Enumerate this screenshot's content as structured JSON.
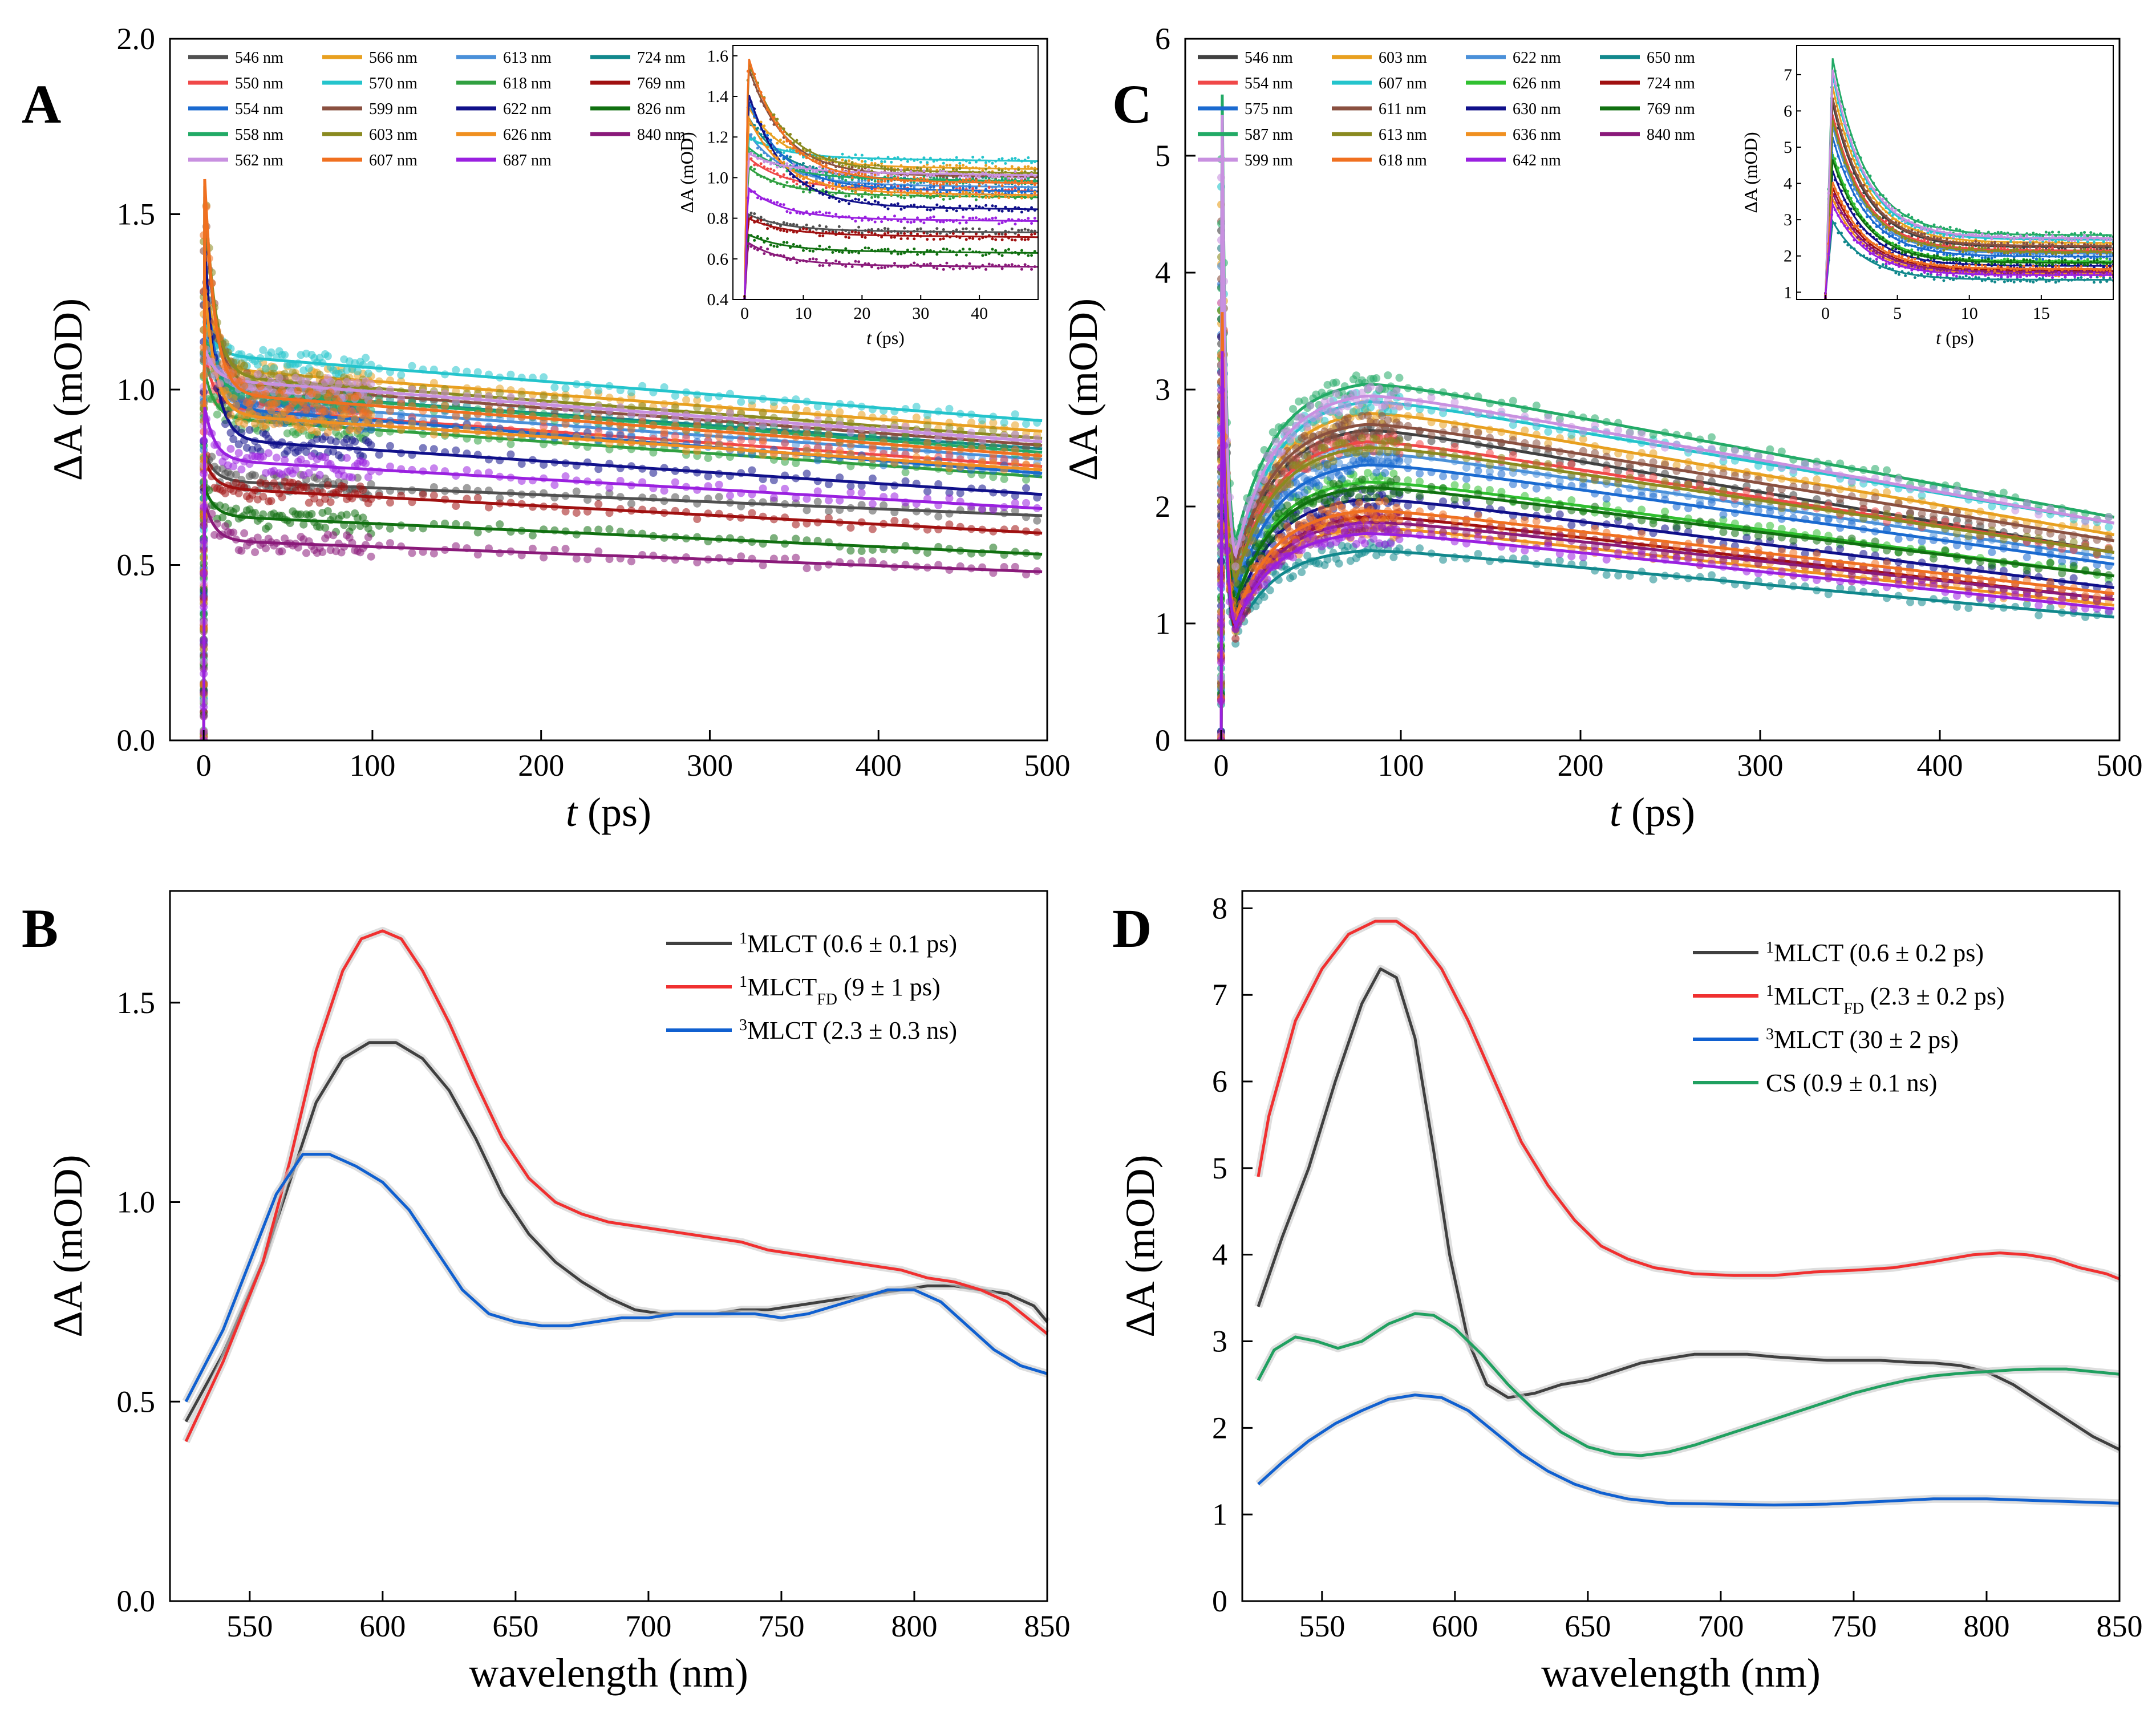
{
  "chart_data": [
    {
      "panel": "A",
      "type": "scatter",
      "xlabel_italic": "t",
      "xlabel_unit": "(ps)",
      "ylabel": "ΔA (mOD)",
      "xlim": [
        -20,
        500
      ],
      "ylim": [
        0,
        2.0
      ],
      "xticks": [
        "0",
        "100",
        "200",
        "300",
        "400",
        "500"
      ],
      "yticks": [
        "0.0",
        "0.5",
        "1.0",
        "1.5",
        "2.0"
      ],
      "legend": [
        "546 nm",
        "566 nm",
        "613 nm",
        "724 nm",
        "550 nm",
        "570 nm",
        "618 nm",
        "769 nm",
        "554 nm",
        "599 nm",
        "622 nm",
        "826 nm",
        "558 nm",
        "603 nm",
        "626 nm",
        "840 nm",
        "562 nm",
        "607 nm",
        "687 nm"
      ],
      "legend_colors": [
        "#505050",
        "#e8a020",
        "#4a90d9",
        "#11888c",
        "#f04848",
        "#24c4cc",
        "#30a040",
        "#a01010",
        "#1a6ad0",
        "#8a5040",
        "#10108a",
        "#107010",
        "#22aa66",
        "#8a8a20",
        "#f09020",
        "#8a1a7a",
        "#c890e0",
        "#f07020",
        "#9a20e0"
      ],
      "series": [
        {
          "name": "546 nm",
          "color": "#505050",
          "start": 0.82,
          "plateau": 0.74,
          "end": 0.64
        },
        {
          "name": "566 nm",
          "color": "#e8a020",
          "start": 1.35,
          "plateau": 1.06,
          "end": 0.88
        },
        {
          "name": "613 nm",
          "color": "#4a90d9",
          "start": 1.22,
          "plateau": 0.97,
          "end": 0.8
        },
        {
          "name": "724 nm",
          "color": "#11888c",
          "start": 1.3,
          "plateau": 1.0,
          "end": 0.83
        },
        {
          "name": "550 nm",
          "color": "#f04848",
          "start": 1.1,
          "plateau": 0.95,
          "end": 0.78
        },
        {
          "name": "570 nm",
          "color": "#24c4cc",
          "start": 1.2,
          "plateau": 1.1,
          "end": 0.91
        },
        {
          "name": "618 nm",
          "color": "#30a040",
          "start": 1.05,
          "plateau": 0.92,
          "end": 0.75
        },
        {
          "name": "769 nm",
          "color": "#a01010",
          "start": 0.8,
          "plateau": 0.72,
          "end": 0.59
        },
        {
          "name": "554 nm",
          "color": "#1a6ad0",
          "start": 1.38,
          "plateau": 0.95,
          "end": 0.76
        },
        {
          "name": "599 nm",
          "color": "#8a5040",
          "start": 1.55,
          "plateau": 1.02,
          "end": 0.84
        },
        {
          "name": "622 nm",
          "color": "#10108a",
          "start": 1.42,
          "plateau": 0.86,
          "end": 0.7
        },
        {
          "name": "826 nm",
          "color": "#107010",
          "start": 0.72,
          "plateau": 0.64,
          "end": 0.53
        },
        {
          "name": "558 nm",
          "color": "#22aa66",
          "start": 1.15,
          "plateau": 1.0,
          "end": 0.82
        },
        {
          "name": "603 nm",
          "color": "#8a8a20",
          "start": 1.58,
          "plateau": 1.04,
          "end": 0.86
        },
        {
          "name": "626 nm",
          "color": "#f09020",
          "start": 1.3,
          "plateau": 0.93,
          "end": 0.77
        },
        {
          "name": "840 nm",
          "color": "#8a1a7a",
          "start": 0.68,
          "plateau": 0.57,
          "end": 0.48
        },
        {
          "name": "562 nm",
          "color": "#c890e0",
          "start": 1.12,
          "plateau": 1.03,
          "end": 0.85
        },
        {
          "name": "607 nm",
          "color": "#f07020",
          "start": 1.6,
          "plateau": 0.99,
          "end": 0.81
        },
        {
          "name": "687 nm",
          "color": "#9a20e0",
          "start": 0.95,
          "plateau": 0.8,
          "end": 0.66
        }
      ],
      "inset": {
        "xlabel_italic": "t",
        "xlabel_unit": "(ps)",
        "ylabel": "ΔA (mOD)",
        "xlim": [
          -2,
          50
        ],
        "ylim": [
          0.4,
          1.65
        ],
        "xticks": [
          "0",
          "10",
          "20",
          "30",
          "40"
        ],
        "yticks": [
          "0.4",
          "0.6",
          "0.8",
          "1.0",
          "1.2",
          "1.4",
          "1.6"
        ]
      }
    },
    {
      "panel": "B",
      "type": "line",
      "xlabel": "wavelength (nm)",
      "ylabel": "ΔA (mOD)",
      "xlim": [
        520,
        850
      ],
      "ylim": [
        0,
        1.78
      ],
      "xticks": [
        "550",
        "600",
        "650",
        "700",
        "750",
        "800",
        "850"
      ],
      "yticks": [
        "0.0",
        "0.5",
        "1.0",
        "1.5"
      ],
      "series": [
        {
          "label_sup": "1",
          "label": "MLCT",
          "label_sub": "",
          "label_rest": "(0.6 ± 0.1 ps)",
          "color": "#404040",
          "x": [
            526,
            540,
            555,
            565,
            575,
            585,
            595,
            605,
            615,
            625,
            635,
            645,
            655,
            665,
            675,
            685,
            695,
            705,
            715,
            725,
            735,
            745,
            755,
            765,
            775,
            785,
            795,
            805,
            815,
            825,
            835,
            845,
            850
          ],
          "y": [
            0.45,
            0.62,
            0.85,
            1.05,
            1.25,
            1.36,
            1.4,
            1.4,
            1.36,
            1.28,
            1.16,
            1.02,
            0.92,
            0.85,
            0.8,
            0.76,
            0.73,
            0.72,
            0.72,
            0.72,
            0.73,
            0.73,
            0.74,
            0.75,
            0.76,
            0.77,
            0.78,
            0.79,
            0.79,
            0.78,
            0.77,
            0.74,
            0.7
          ]
        },
        {
          "label_sup": "1",
          "label": "MLCT",
          "label_sub": "FD",
          "label_rest": "(9 ± 1 ps)",
          "color": "#f03030",
          "x": [
            526,
            540,
            555,
            565,
            575,
            585,
            592,
            600,
            607,
            615,
            625,
            635,
            645,
            655,
            665,
            675,
            685,
            695,
            705,
            715,
            725,
            735,
            745,
            755,
            765,
            775,
            785,
            795,
            805,
            815,
            825,
            835,
            850
          ],
          "y": [
            0.4,
            0.6,
            0.85,
            1.1,
            1.38,
            1.58,
            1.66,
            1.68,
            1.66,
            1.58,
            1.45,
            1.3,
            1.16,
            1.06,
            1.0,
            0.97,
            0.95,
            0.94,
            0.93,
            0.92,
            0.91,
            0.9,
            0.88,
            0.87,
            0.86,
            0.85,
            0.84,
            0.83,
            0.81,
            0.8,
            0.78,
            0.75,
            0.67
          ]
        },
        {
          "label_sup": "3",
          "label": "MLCT",
          "label_sub": "",
          "label_rest": "(2.3 ± 0.3 ns)",
          "color": "#1060d0",
          "x": [
            526,
            540,
            550,
            560,
            570,
            580,
            590,
            600,
            610,
            620,
            630,
            640,
            650,
            660,
            670,
            680,
            690,
            700,
            710,
            720,
            730,
            740,
            750,
            760,
            770,
            780,
            790,
            800,
            810,
            820,
            830,
            840,
            850
          ],
          "y": [
            0.5,
            0.68,
            0.85,
            1.02,
            1.12,
            1.12,
            1.09,
            1.05,
            0.98,
            0.88,
            0.78,
            0.72,
            0.7,
            0.69,
            0.69,
            0.7,
            0.71,
            0.71,
            0.72,
            0.72,
            0.72,
            0.72,
            0.71,
            0.72,
            0.74,
            0.76,
            0.78,
            0.78,
            0.75,
            0.69,
            0.63,
            0.59,
            0.57
          ]
        }
      ]
    },
    {
      "panel": "C",
      "type": "scatter",
      "xlabel_italic": "t",
      "xlabel_unit": "(ps)",
      "ylabel": "ΔA (mOD)",
      "xlim": [
        -20,
        500
      ],
      "ylim": [
        0,
        6
      ],
      "xticks": [
        "0",
        "100",
        "200",
        "300",
        "400",
        "500"
      ],
      "yticks": [
        "0",
        "1",
        "2",
        "3",
        "4",
        "5",
        "6"
      ],
      "legend": [
        "546 nm",
        "603 nm",
        "622 nm",
        "650 nm",
        "554 nm",
        "607 nm",
        "626 nm",
        "724 nm",
        "575 nm",
        "611 nm",
        "630 nm",
        "769 nm",
        "587 nm",
        "613 nm",
        "636 nm",
        "840 nm",
        "599 nm",
        "618 nm",
        "642 nm"
      ],
      "legend_colors": [
        "#404040",
        "#e8a020",
        "#4a90d9",
        "#11888c",
        "#f04848",
        "#24c4cc",
        "#30c030",
        "#a01010",
        "#1a6ad0",
        "#8a5040",
        "#10108a",
        "#107010",
        "#22aa66",
        "#8a8a20",
        "#f09020",
        "#8a1a7a",
        "#c890e0",
        "#f07020",
        "#9a20e0"
      ],
      "series": [
        {
          "name": "546 nm",
          "color": "#404040",
          "dip": 2.2,
          "peak": 2.7,
          "end": 1.6
        },
        {
          "name": "603 nm",
          "color": "#e8a020",
          "dip": 2.2,
          "peak": 2.85,
          "end": 1.75
        },
        {
          "name": "622 nm",
          "color": "#4a90d9",
          "dip": 2.0,
          "peak": 2.5,
          "end": 1.55
        },
        {
          "name": "650 nm",
          "color": "#11888c",
          "dip": 1.4,
          "peak": 1.65,
          "end": 1.05
        },
        {
          "name": "554 nm",
          "color": "#f04848",
          "dip": 2.1,
          "peak": 2.6,
          "end": 1.6
        },
        {
          "name": "607 nm",
          "color": "#24c4cc",
          "dip": 2.3,
          "peak": 2.95,
          "end": 1.85
        },
        {
          "name": "626 nm",
          "color": "#30c030",
          "dip": 1.8,
          "peak": 2.25,
          "end": 1.4
        },
        {
          "name": "724 nm",
          "color": "#a01010",
          "dip": 1.4,
          "peak": 1.95,
          "end": 1.2
        },
        {
          "name": "575 nm",
          "color": "#1a6ad0",
          "dip": 1.9,
          "peak": 2.4,
          "end": 1.5
        },
        {
          "name": "611 nm",
          "color": "#8a5040",
          "dip": 2.3,
          "peak": 2.75,
          "end": 1.7
        },
        {
          "name": "630 nm",
          "color": "#10108a",
          "dip": 1.7,
          "peak": 2.1,
          "end": 1.3
        },
        {
          "name": "769 nm",
          "color": "#107010",
          "dip": 1.8,
          "peak": 2.2,
          "end": 1.4
        },
        {
          "name": "587 nm",
          "color": "#22aa66",
          "dip": 2.6,
          "peak": 3.1,
          "end": 1.9
        },
        {
          "name": "613 nm",
          "color": "#8a8a20",
          "dip": 2.1,
          "peak": 2.55,
          "end": 1.6
        },
        {
          "name": "636 nm",
          "color": "#f09020",
          "dip": 1.5,
          "peak": 1.85,
          "end": 1.15
        },
        {
          "name": "840 nm",
          "color": "#8a1a7a",
          "dip": 1.5,
          "peak": 1.9,
          "end": 1.2
        },
        {
          "name": "599 nm",
          "color": "#c890e0",
          "dip": 2.4,
          "peak": 3.0,
          "end": 1.85
        },
        {
          "name": "618 nm",
          "color": "#f07020",
          "dip": 1.6,
          "peak": 2.0,
          "end": 1.25
        },
        {
          "name": "642 nm",
          "color": "#9a20e0",
          "dip": 1.5,
          "peak": 1.8,
          "end": 1.12
        }
      ],
      "inset": {
        "xlabel_italic": "t",
        "xlabel_unit": "(ps)",
        "ylabel": "ΔA (mOD)",
        "xlim": [
          -2,
          20
        ],
        "ylim": [
          0.8,
          7.8
        ],
        "xticks": [
          "0",
          "5",
          "10",
          "15"
        ],
        "yticks": [
          "1",
          "2",
          "3",
          "4",
          "5",
          "6",
          "7"
        ]
      }
    },
    {
      "panel": "D",
      "type": "line",
      "xlabel": "wavelength (nm)",
      "ylabel": "ΔA (mOD)",
      "xlim": [
        520,
        850
      ],
      "ylim": [
        0,
        8.2
      ],
      "xticks": [
        "550",
        "600",
        "650",
        "700",
        "750",
        "800",
        "850"
      ],
      "yticks": [
        "0",
        "1",
        "2",
        "3",
        "4",
        "5",
        "6",
        "7",
        "8"
      ],
      "series": [
        {
          "label_sup": "1",
          "label": "MLCT",
          "label_sub": "",
          "label_rest": "(0.6 ± 0.2 ps)",
          "color": "#404040",
          "x": [
            526,
            535,
            545,
            555,
            565,
            572,
            578,
            585,
            592,
            598,
            605,
            612,
            620,
            630,
            640,
            650,
            660,
            670,
            680,
            690,
            700,
            710,
            720,
            730,
            740,
            750,
            760,
            770,
            780,
            790,
            800,
            810,
            820,
            830,
            840,
            850
          ],
          "y": [
            3.4,
            4.2,
            5.0,
            6.0,
            6.9,
            7.3,
            7.2,
            6.5,
            5.2,
            4.0,
            3.0,
            2.5,
            2.35,
            2.4,
            2.5,
            2.55,
            2.65,
            2.75,
            2.8,
            2.85,
            2.85,
            2.85,
            2.82,
            2.8,
            2.78,
            2.78,
            2.78,
            2.76,
            2.75,
            2.72,
            2.65,
            2.5,
            2.3,
            2.1,
            1.9,
            1.75
          ]
        },
        {
          "label_sup": "1",
          "label": "MLCT",
          "label_sub": "FD",
          "label_rest": "(2.3 ± 0.2 ps)",
          "color": "#f03030",
          "x": [
            526,
            530,
            540,
            550,
            560,
            570,
            578,
            585,
            595,
            605,
            615,
            625,
            635,
            645,
            655,
            665,
            675,
            690,
            705,
            720,
            735,
            750,
            765,
            780,
            795,
            805,
            815,
            825,
            835,
            845,
            850
          ],
          "y": [
            4.9,
            5.6,
            6.7,
            7.3,
            7.7,
            7.85,
            7.85,
            7.7,
            7.3,
            6.7,
            6.0,
            5.3,
            4.8,
            4.4,
            4.1,
            3.95,
            3.85,
            3.78,
            3.76,
            3.76,
            3.8,
            3.82,
            3.85,
            3.92,
            4.0,
            4.02,
            4.0,
            3.95,
            3.85,
            3.78,
            3.72
          ]
        },
        {
          "label_sup": "3",
          "label": "MLCT",
          "label_sub": "",
          "label_rest": "(30 ± 2 ps)",
          "color": "#1060d0",
          "x": [
            526,
            535,
            545,
            555,
            565,
            575,
            585,
            595,
            605,
            615,
            625,
            635,
            645,
            655,
            665,
            680,
            700,
            720,
            740,
            760,
            780,
            800,
            820,
            840,
            850
          ],
          "y": [
            1.35,
            1.6,
            1.85,
            2.05,
            2.2,
            2.33,
            2.38,
            2.35,
            2.2,
            1.95,
            1.7,
            1.5,
            1.35,
            1.25,
            1.18,
            1.13,
            1.12,
            1.11,
            1.12,
            1.15,
            1.18,
            1.18,
            1.16,
            1.14,
            1.13
          ]
        },
        {
          "label_sup": "",
          "label": "CS",
          "label_sub": "",
          "label_rest": "(0.9 ± 0.1 ns)",
          "color": "#20a060",
          "x": [
            526,
            532,
            540,
            548,
            556,
            565,
            575,
            585,
            592,
            600,
            610,
            620,
            630,
            640,
            650,
            660,
            670,
            680,
            690,
            700,
            710,
            720,
            730,
            740,
            750,
            760,
            770,
            780,
            790,
            800,
            810,
            820,
            830,
            840,
            850
          ],
          "y": [
            2.55,
            2.9,
            3.05,
            3.0,
            2.92,
            3.0,
            3.2,
            3.32,
            3.3,
            3.15,
            2.85,
            2.5,
            2.2,
            1.95,
            1.78,
            1.7,
            1.68,
            1.72,
            1.8,
            1.9,
            2.0,
            2.1,
            2.2,
            2.3,
            2.4,
            2.48,
            2.55,
            2.6,
            2.63,
            2.65,
            2.67,
            2.68,
            2.68,
            2.65,
            2.62
          ]
        }
      ]
    }
  ]
}
